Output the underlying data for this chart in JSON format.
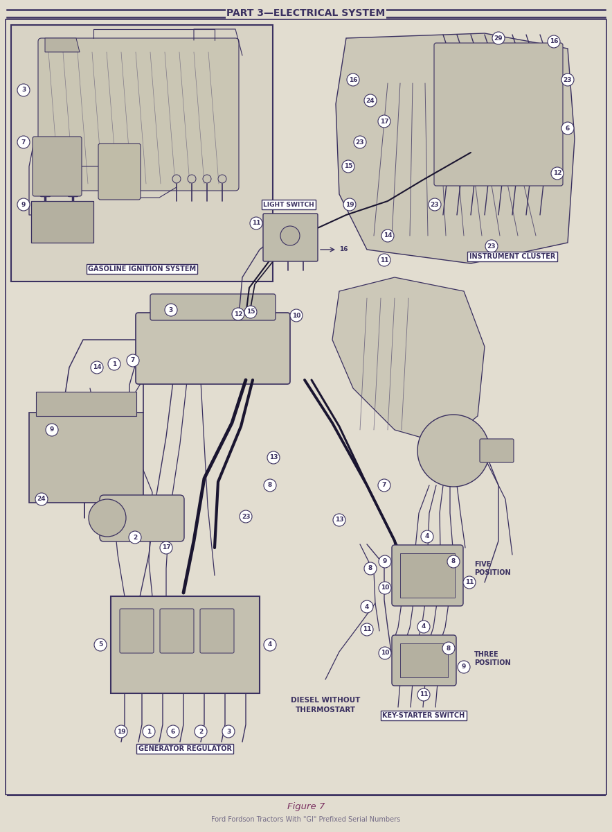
{
  "bg_color": "#ddd8c8",
  "line_color": "#3a3060",
  "text_color": "#3a3060",
  "title": "PART 3—ELECTRICAL SYSTEM",
  "figure_caption": "Figure 7",
  "subtitle": "Ford Fordson Tractors With \"GI\" Prefixed Serial Numbers",
  "label_gasoline": "GASOLINE IGNITION SYSTEM",
  "label_light_switch": "LIGHT SWITCH",
  "label_instrument_cluster": "INSTRUMENT CLUSTER",
  "label_generator_regulator": "GENERATOR REGULATOR",
  "label_key_starter": "KEY-STARTER SWITCH",
  "label_diesel": "DIESEL WITHOUT\nTHERMOSTART",
  "label_five_pos": "FIVE\nPOSITION",
  "label_three_pos": "THREE\nPOSITION",
  "page_bg": "#e2ddd0",
  "inset_bg": "#d8d3c5",
  "component_bg": "#ccc8b8"
}
